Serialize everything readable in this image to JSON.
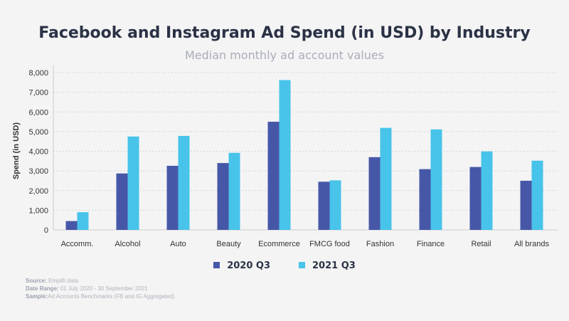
{
  "chart_data": {
    "type": "bar",
    "title": "Facebook and Instagram Ad Spend (in USD) by Industry",
    "subtitle": "Median monthly ad account values",
    "xlabel": "",
    "ylabel": "Spend (in USD)",
    "ylim": [
      0,
      8000
    ],
    "yticks": [
      "0",
      "1,000",
      "2,000",
      "3,000",
      "4,000",
      "5,000",
      "6,000",
      "7,000",
      "8,000"
    ],
    "grid": true,
    "legend_position": "bottom",
    "categories": [
      "Accomm.",
      "Alcohol",
      "Auto",
      "Beauty",
      "Ecommerce",
      "FMCG food",
      "Fashion",
      "Finance",
      "Retail",
      "All brands"
    ],
    "series": [
      {
        "name": "2020 Q3",
        "color": "#4757a8",
        "values": [
          450,
          2870,
          3260,
          3400,
          5500,
          2450,
          3700,
          3090,
          3200,
          2500
        ]
      },
      {
        "name": "2021 Q3",
        "color": "#48c3ea",
        "values": [
          900,
          4750,
          4780,
          3920,
          7620,
          2520,
          5190,
          5110,
          3990,
          3520
        ]
      }
    ]
  },
  "notes": {
    "source_label": "Source:",
    "source": "Emplifi data",
    "date_label": "Date Range:",
    "date": "01 July 2020 - 30 September 2021",
    "sample_label": "Sample:",
    "sample": "Ad Accounts Benchmarks (FB and IG Aggregated)"
  }
}
